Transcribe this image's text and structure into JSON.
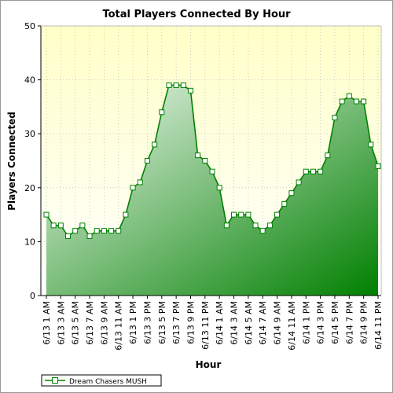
{
  "chart_data": {
    "type": "area",
    "title": "Total Players Connected By Hour",
    "xlabel": "Hour",
    "ylabel": "Players Connected",
    "ylim": [
      0,
      50
    ],
    "yticks": [
      0,
      10,
      20,
      30,
      40,
      50
    ],
    "grid": true,
    "legend_position": "bottom-left",
    "colors": {
      "fill_light": "#f2f9f2",
      "fill_dark": "#008000",
      "line": "#008000",
      "plot_bg_top": "#ffffc8",
      "plot_bg_bottom": "#ffffff",
      "marker_fill": "#ffffff"
    },
    "x_labels": [
      "6/13 1 AM",
      "6/13 3 AM",
      "6/13 5 AM",
      "6/13 7 AM",
      "6/13 9 AM",
      "6/13 11 AM",
      "6/13 1 PM",
      "6/13 3 PM",
      "6/13 5 PM",
      "6/13 7 PM",
      "6/13 9 PM",
      "6/13 11 PM",
      "6/14 1 AM",
      "6/14 3 AM",
      "6/14 5 AM",
      "6/14 7 AM",
      "6/14 9 AM",
      "6/14 11 AM",
      "6/14 1 PM",
      "6/14 3 PM",
      "6/14 5 PM",
      "6/14 7 PM",
      "6/14 9 PM",
      "6/14 11 PM"
    ],
    "series": [
      {
        "name": "Dream Chasers MUSH",
        "values": [
          15,
          13,
          13,
          11,
          12,
          13,
          11,
          12,
          12,
          12,
          12,
          15,
          20,
          21,
          25,
          28,
          34,
          39,
          39,
          39,
          38,
          26,
          25,
          23,
          20,
          13,
          15,
          15,
          15,
          13,
          12,
          13,
          15,
          17,
          19,
          21,
          23,
          23,
          23,
          26,
          33,
          36,
          37,
          36,
          36,
          28,
          24
        ]
      }
    ]
  }
}
